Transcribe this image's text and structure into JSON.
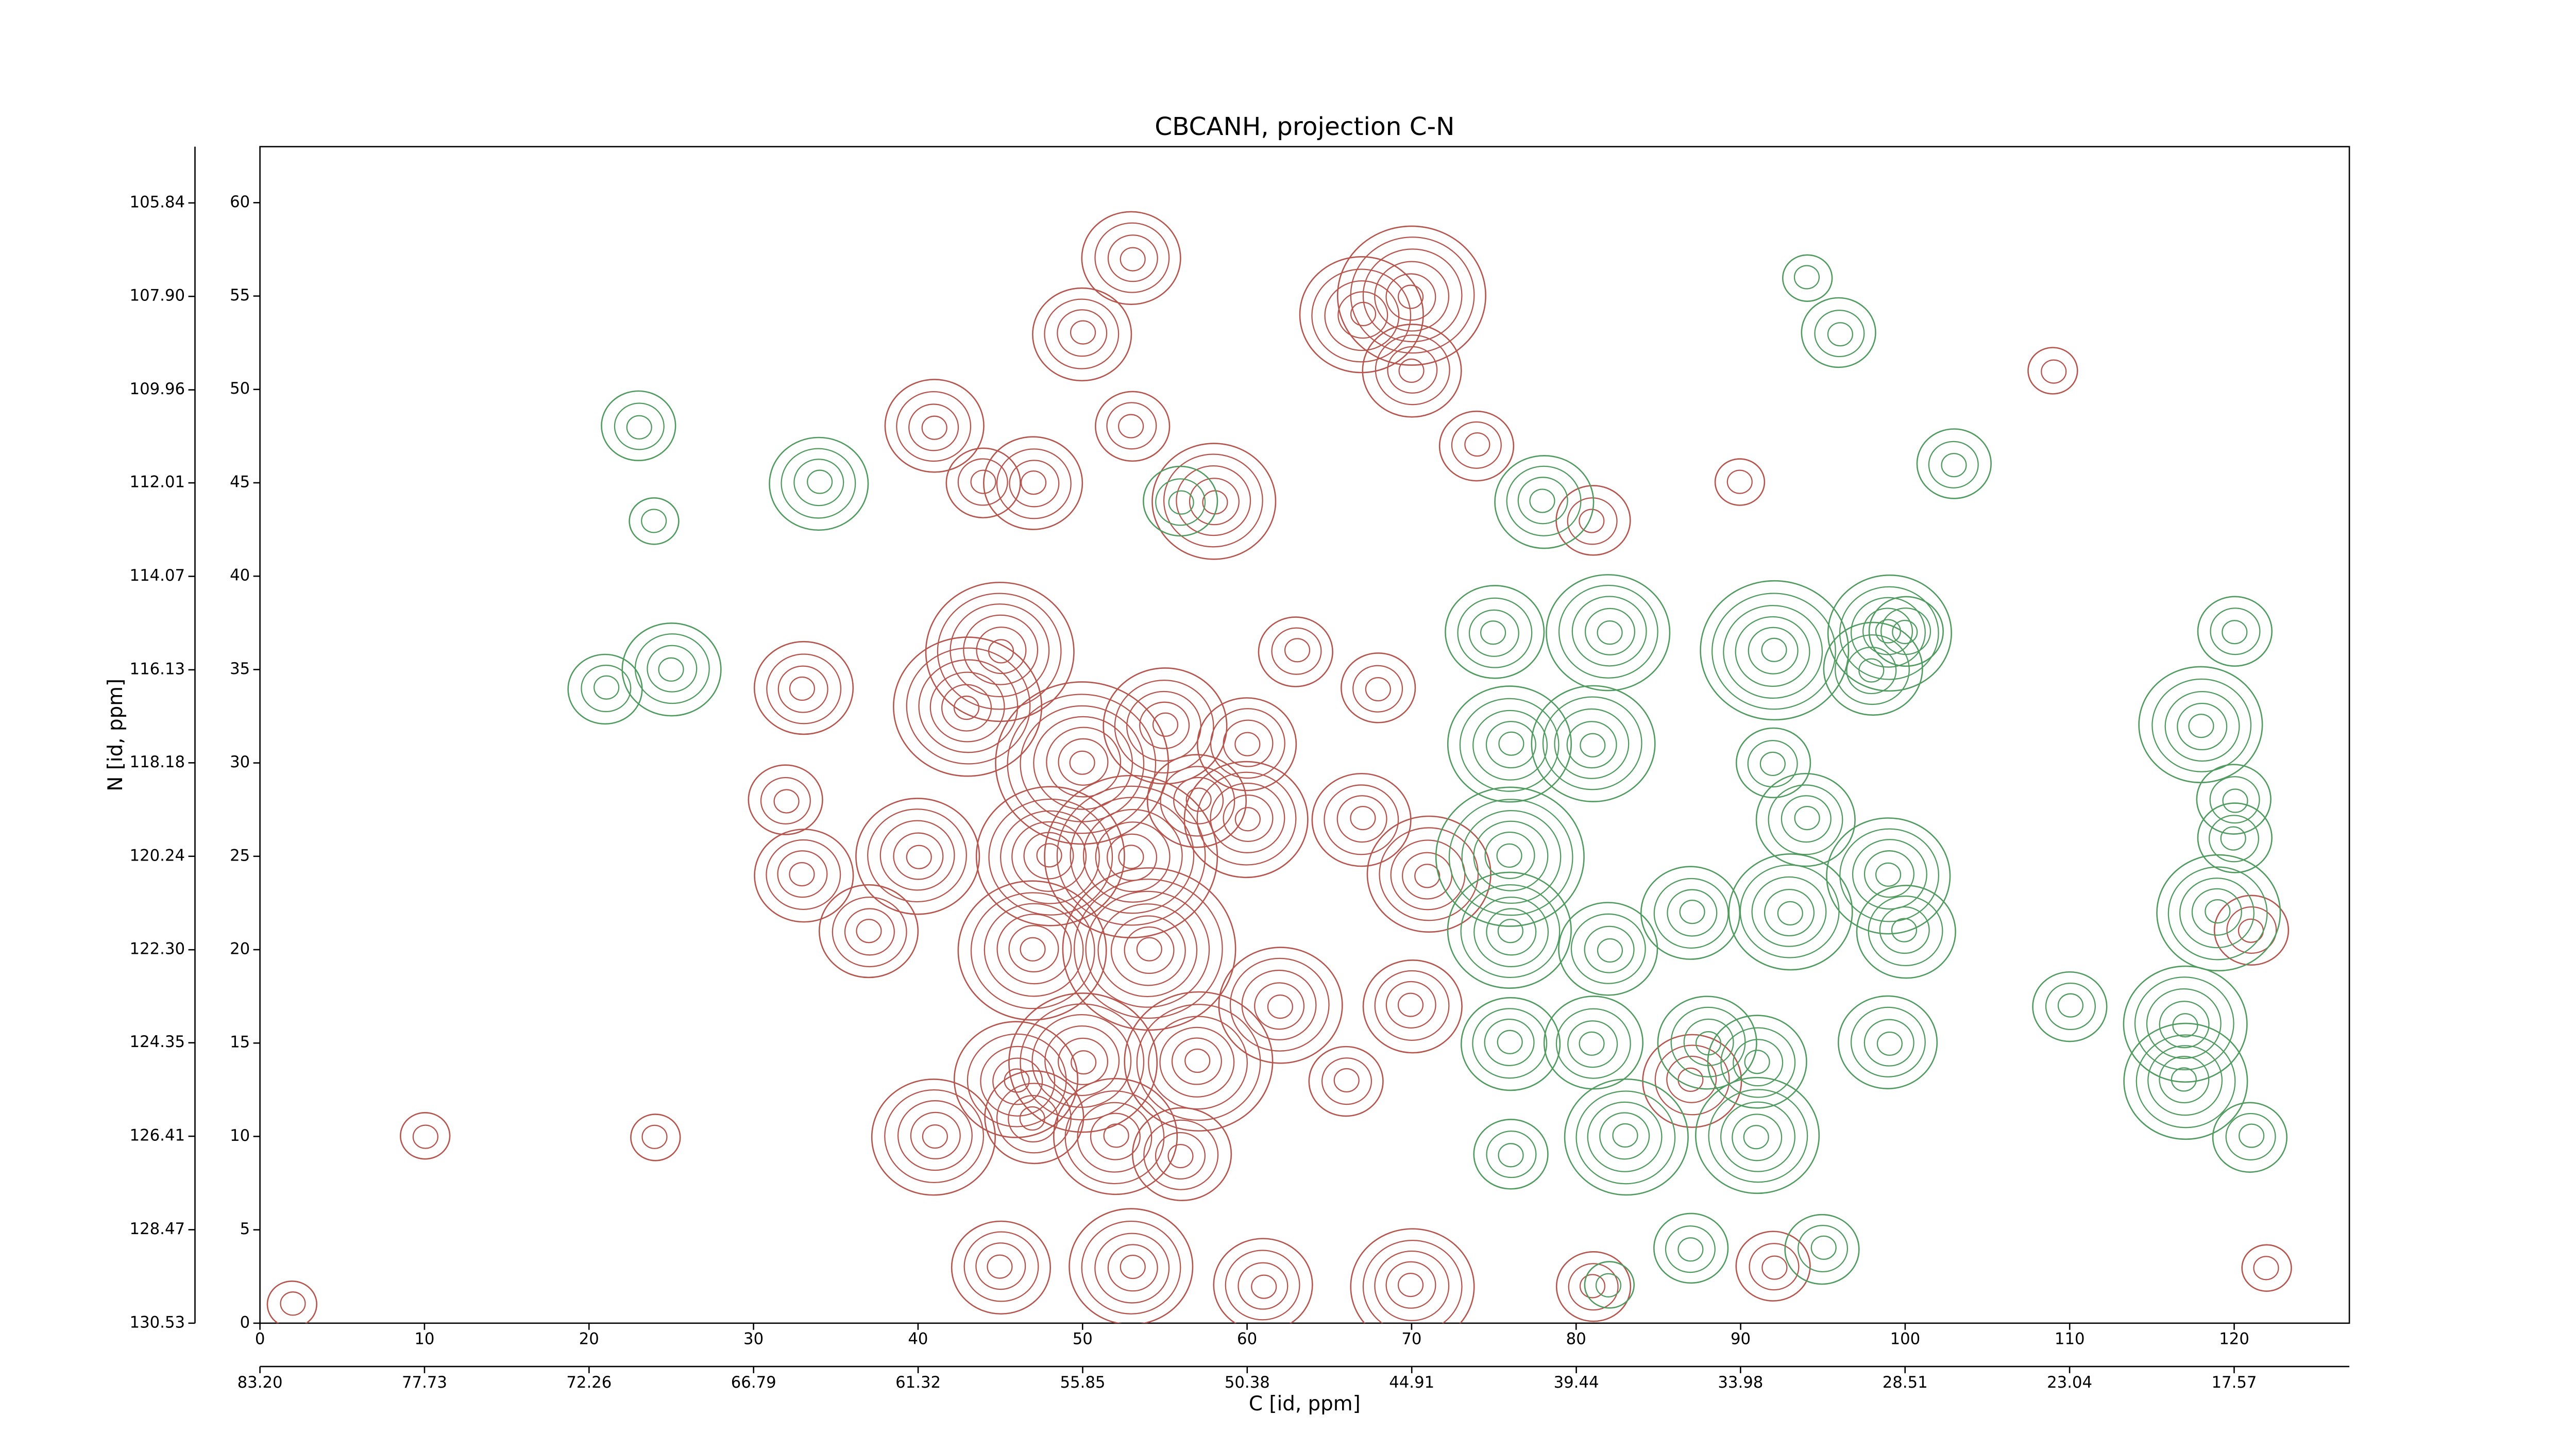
{
  "chart_data": {
    "type": "contour",
    "title": "CBCANH, projection C-N",
    "xlabel": "C [id, ppm]",
    "ylabel": "N [id, ppm]",
    "xlim": [
      0,
      127
    ],
    "ylim": [
      0,
      63
    ],
    "xticks": [
      0,
      10,
      20,
      30,
      40,
      50,
      60,
      70,
      80,
      90,
      100,
      110,
      120
    ],
    "yticks": [
      0,
      5,
      10,
      15,
      20,
      25,
      30,
      35,
      40,
      45,
      50,
      55,
      60
    ],
    "x2lim": [
      83.2,
      13.74
    ],
    "x2ticks": [
      {
        "value": 83.2,
        "label": "83.20"
      },
      77.73,
      72.26,
      66.79,
      61.32,
      55.85,
      50.38,
      44.91,
      39.44,
      33.98,
      28.51,
      23.04,
      17.57
    ],
    "y2lim": [
      130.53,
      104.6
    ],
    "y2ticks": [
      130.53,
      128.47,
      126.41,
      124.35,
      {
        "value": 122.3,
        "label": "122.30"
      },
      120.24,
      118.18,
      116.13,
      114.07,
      112.01,
      109.96,
      {
        "value": 107.9,
        "label": "107.90"
      },
      105.84
    ],
    "series": [
      {
        "color": "#b5544c",
        "x": [
          53,
          50,
          70,
          70,
          67,
          41,
          53,
          47,
          58,
          44,
          33,
          45,
          55,
          43,
          50,
          57,
          32,
          33,
          37,
          40,
          48,
          53,
          60,
          67,
          71,
          47,
          54,
          62,
          70,
          46,
          50,
          57,
          47,
          41,
          52,
          56,
          45,
          53,
          61,
          70,
          81,
          92,
          74,
          81,
          60,
          63,
          68,
          87,
          66,
          109,
          90,
          24,
          10,
          2,
          122,
          121
        ],
        "y": [
          57,
          53,
          55,
          51,
          54,
          48,
          48,
          45,
          44,
          45,
          34,
          36,
          32,
          33,
          30,
          28,
          28,
          24,
          21,
          25,
          25,
          25,
          27,
          27,
          24,
          20,
          20,
          17,
          17,
          13,
          14,
          14,
          11,
          10,
          10,
          9,
          3,
          3,
          2,
          2,
          2,
          3,
          47,
          43,
          31,
          36,
          34,
          13,
          13,
          51,
          45,
          10,
          10,
          1,
          3,
          21
        ],
        "sizes": [
          4,
          4,
          6,
          4,
          5,
          4,
          3,
          4,
          5,
          3,
          4,
          6,
          5,
          6,
          7,
          4,
          3,
          4,
          4,
          5,
          6,
          7,
          5,
          4,
          5,
          6,
          7,
          5,
          4,
          5,
          6,
          6,
          4,
          5,
          5,
          4,
          4,
          5,
          4,
          5,
          3,
          3,
          3,
          3,
          4,
          3,
          3,
          4,
          3,
          2,
          2,
          2,
          2,
          2,
          2,
          3
        ]
      },
      {
        "color": "#4f9a5e",
        "x": [
          23,
          34,
          24,
          25,
          21,
          56,
          78,
          94,
          96,
          99,
          75,
          82,
          92,
          98,
          100,
          76,
          81,
          76,
          76,
          82,
          76,
          81,
          88,
          94,
          92,
          99,
          87,
          93,
          100,
          91,
          99,
          83,
          91,
          76,
          95,
          87,
          82,
          110,
          117,
          117,
          118,
          120,
          119,
          120,
          120,
          121,
          103
        ],
        "y": [
          48,
          45,
          43,
          35,
          34,
          44,
          44,
          56,
          53,
          37,
          37,
          37,
          36,
          35,
          37,
          31,
          31,
          25,
          21,
          20,
          15,
          15,
          15,
          27,
          30,
          24,
          22,
          22,
          21,
          14,
          15,
          10,
          10,
          9,
          4,
          4,
          2,
          17,
          16,
          13,
          32,
          28,
          22,
          26,
          37,
          10,
          46
        ],
        "sizes": [
          3,
          4,
          2,
          4,
          3,
          3,
          4,
          2,
          3,
          5,
          4,
          5,
          6,
          4,
          3,
          5,
          5,
          6,
          5,
          4,
          4,
          4,
          4,
          4,
          3,
          5,
          4,
          5,
          4,
          4,
          4,
          5,
          5,
          3,
          3,
          3,
          2,
          3,
          5,
          5,
          5,
          3,
          5,
          3,
          3,
          3,
          3
        ]
      }
    ]
  }
}
